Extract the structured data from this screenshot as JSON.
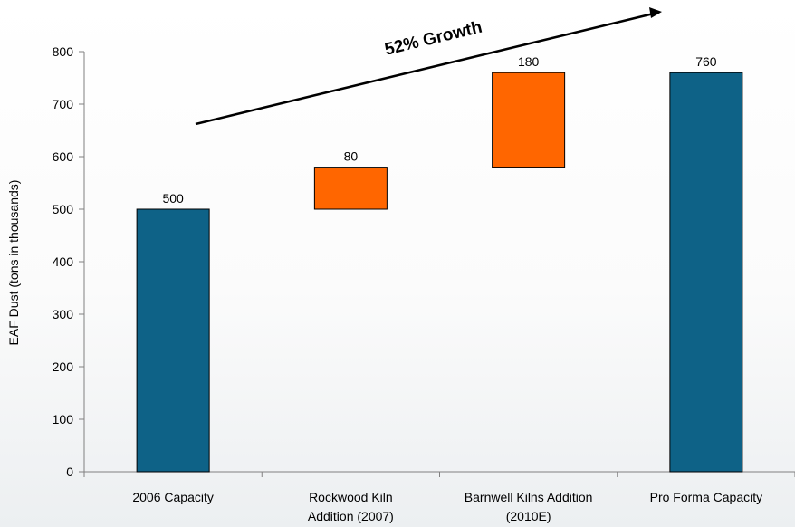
{
  "chart_data": {
    "type": "bar",
    "variant": "waterfall",
    "title": "",
    "ylabel": "EAF Dust (tons in thousands)",
    "xlabel": "",
    "ylim": [
      0,
      800
    ],
    "yticks": [
      0,
      100,
      200,
      300,
      400,
      500,
      600,
      700,
      800
    ],
    "grid": false,
    "categories": [
      {
        "lines": [
          "2006 Capacity"
        ]
      },
      {
        "lines": [
          "Rockwood Kiln",
          "Addition (2007)"
        ]
      },
      {
        "lines": [
          "Barnwell Kilns Addition",
          "(2010E)"
        ]
      },
      {
        "lines": [
          "Pro Forma Capacity"
        ]
      }
    ],
    "bars": [
      {
        "base": 0,
        "value": 500,
        "label": "500",
        "kind": "total"
      },
      {
        "base": 500,
        "value": 80,
        "label": "80",
        "kind": "increment"
      },
      {
        "base": 580,
        "value": 180,
        "label": "180",
        "kind": "increment"
      },
      {
        "base": 0,
        "value": 760,
        "label": "760",
        "kind": "total"
      }
    ],
    "colors": {
      "total": "#0e6287",
      "increment": "#ff6600"
    },
    "annotation": {
      "text": "52% Growth"
    }
  }
}
